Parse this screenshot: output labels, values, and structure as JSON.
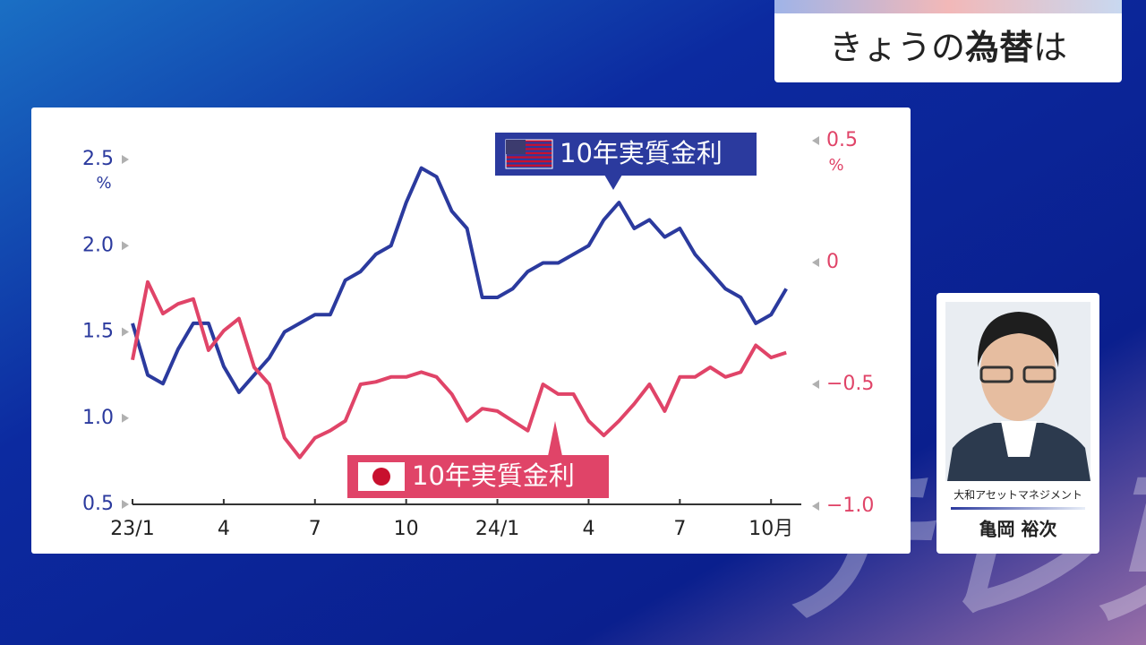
{
  "header": {
    "title_parts": [
      "きょうの",
      "為替",
      "は"
    ]
  },
  "chart_data": {
    "type": "line",
    "x": [
      0,
      0.5,
      1,
      1.5,
      2,
      2.5,
      3,
      3.5,
      4,
      4.5,
      5,
      5.5,
      6,
      6.5,
      7,
      7.5,
      8,
      8.5,
      9,
      9.5,
      10,
      10.5,
      11,
      11.5,
      12,
      12.5,
      13,
      13.5,
      14,
      14.5,
      15,
      15.5,
      16,
      16.5,
      17,
      17.5,
      18,
      18.5,
      19,
      19.5,
      20,
      20.5,
      21,
      21.5
    ],
    "xlim": [
      0,
      21.7
    ],
    "xticks": [
      {
        "value": 0,
        "label": "23/1"
      },
      {
        "value": 3,
        "label": "4"
      },
      {
        "value": 6,
        "label": "7"
      },
      {
        "value": 9,
        "label": "10"
      },
      {
        "value": 12,
        "label": "24/1"
      },
      {
        "value": 15,
        "label": "4"
      },
      {
        "value": 18,
        "label": "7"
      },
      {
        "value": 21,
        "label": "10月"
      }
    ],
    "ylim": [
      0.5,
      2.5
    ],
    "yticks": [
      0.5,
      {
        "value": 1,
        "label": "1.0"
      },
      1.5,
      {
        "value": 2,
        "label": "2.0"
      },
      2.5
    ],
    "y_unit": "%",
    "y2lim": [
      -1,
      0.5
    ],
    "y2ticks": [
      {
        "value": -1,
        "label": "−1.0"
      },
      {
        "value": -0.5,
        "label": "−0.5"
      },
      0,
      0.5
    ],
    "y2_unit": "%",
    "series": [
      {
        "name": "10年実質金利",
        "color": "#2b3a9e",
        "values": [
          1.55,
          1.25,
          1.2,
          1.4,
          1.55,
          1.55,
          1.3,
          1.15,
          1.25,
          1.35,
          1.5,
          1.55,
          1.6,
          1.6,
          1.8,
          1.85,
          1.95,
          2.0,
          2.25,
          2.45,
          2.4,
          2.2,
          2.1,
          1.7,
          1.7,
          1.75,
          1.85,
          1.9,
          1.9,
          1.95,
          2.0,
          2.15,
          2.25,
          2.1,
          2.15,
          2.05,
          2.1,
          1.95,
          1.85,
          1.75,
          1.7,
          1.55,
          1.6,
          1.75
        ]
      },
      {
        "name": "10年実質金利",
        "color": "#e04468",
        "axis": "y2",
        "values": [
          -0.4,
          -0.08,
          -0.21,
          -0.17,
          -0.15,
          -0.36,
          -0.28,
          -0.23,
          -0.43,
          -0.5,
          -0.72,
          -0.8,
          -0.72,
          -0.69,
          -0.65,
          -0.5,
          -0.49,
          -0.47,
          -0.47,
          -0.45,
          -0.47,
          -0.54,
          -0.65,
          -0.6,
          -0.61,
          -0.65,
          -0.69,
          -0.5,
          -0.54,
          -0.54,
          -0.65,
          -0.71,
          -0.65,
          -0.58,
          -0.5,
          -0.61,
          -0.47,
          -0.47,
          -0.43,
          -0.47,
          -0.45,
          -0.34,
          -0.39,
          -0.37
        ]
      }
    ]
  },
  "guest": {
    "company": "大和アセットマネジメント",
    "name": "亀岡 裕次"
  },
  "watermark": "テレ東"
}
